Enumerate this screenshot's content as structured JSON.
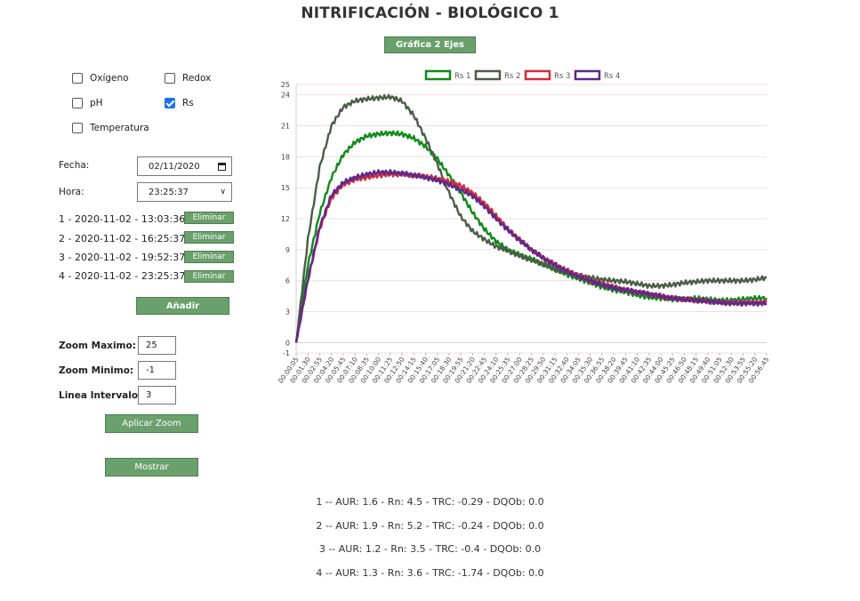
{
  "page": {
    "title": "NITRIFICACIÓN - BIOLÓGICO 1",
    "graph_button": "Gráfica 2 Ejes"
  },
  "checkboxes": [
    {
      "label": "Oxígeno",
      "checked": false
    },
    {
      "label": "Redox",
      "checked": false
    },
    {
      "label": "pH",
      "checked": false
    },
    {
      "label": "Rs",
      "checked": true
    },
    {
      "label": "Temperatura",
      "checked": false
    }
  ],
  "form": {
    "fecha_label": "Fecha:",
    "fecha_value": "02/11/2020",
    "hora_label": "Hora:",
    "hora_value": "23:25:37",
    "entries": [
      {
        "text": "1 - 2020-11-02 - 13:03:36",
        "button": "Eliminar"
      },
      {
        "text": "2 - 2020-11-02 - 16:25:37",
        "button": "Eliminar"
      },
      {
        "text": "3 - 2020-11-02 - 19:52:37",
        "button": "Eliminar"
      },
      {
        "text": "4 - 2020-11-02 - 23:25:37",
        "button": "Eliminar"
      }
    ],
    "add_button": "Añadir",
    "zoom_max_label": "Zoom Maximo:",
    "zoom_max_value": "25",
    "zoom_min_label": "Zoom Minimo:",
    "zoom_min_value": "-1",
    "interval_label": "Linea Intervalo:",
    "interval_value": "3",
    "apply_zoom_button": "Aplicar Zoom",
    "show_button": "Mostrar"
  },
  "stats": [
    "1 -- AUR: 1.6 - Rn: 4.5 - TRC: -0.29 - DQOb: 0.0",
    "2 -- AUR: 1.9 - Rn: 5.2 - TRC: -0.24 - DQOb: 0.0",
    "3 -- AUR: 1.2 - Rn: 3.5 - TRC: -0.4 - DQOb: 0.0",
    "4 -- AUR: 1.3 - Rn: 3.6 - TRC: -1.74 - DQOb: 0.0"
  ],
  "chart_data": {
    "type": "line",
    "title": "",
    "xlabel": "",
    "ylabel": "",
    "ylim": [
      -1,
      25
    ],
    "yticks": [
      -1,
      0,
      3,
      6,
      9,
      12,
      15,
      18,
      21,
      24,
      25
    ],
    "legend_position": "top",
    "x_categories": [
      "00:00:05",
      "00:01:30",
      "00:02:55",
      "00:04:20",
      "00:05:45",
      "00:07:10",
      "00:08:35",
      "00:10:00",
      "00:11:25",
      "00:12:50",
      "00:14:15",
      "00:15:40",
      "00:17:05",
      "00:18:30",
      "00:19:55",
      "00:21:20",
      "00:22:45",
      "00:24:10",
      "00:25:35",
      "00:27:00",
      "00:28:25",
      "00:29:50",
      "00:31:15",
      "00:32:40",
      "00:34:05",
      "00:35:30",
      "00:36:55",
      "00:38:20",
      "00:39:45",
      "00:41:10",
      "00:42:35",
      "00:44:00",
      "00:45:25",
      "00:46:50",
      "00:48:15",
      "00:49:40",
      "00:51:05",
      "00:52:30",
      "00:53:55",
      "00:55:20",
      "00:56:45"
    ],
    "series": [
      {
        "name": "Rs 1",
        "color": "#0f8a1a",
        "values": [
          0,
          7.5,
          12.5,
          16,
          18.2,
          19.4,
          20,
          20.2,
          20.3,
          20.2,
          19.8,
          19,
          17.8,
          16.2,
          14.5,
          12.6,
          11,
          9.8,
          9,
          8.5,
          8.1,
          7.6,
          7.1,
          6.6,
          6.2,
          5.8,
          5.4,
          5.1,
          4.9,
          4.6,
          4.4,
          4.3,
          4.2,
          4.2,
          4.3,
          4.2,
          4.1,
          4.1,
          4.2,
          4.3,
          4.3
        ]
      },
      {
        "name": "Rs 2",
        "color": "#4a5e46",
        "values": [
          0,
          10,
          17,
          21,
          22.8,
          23.4,
          23.6,
          23.7,
          23.8,
          23.4,
          22,
          19.8,
          17.3,
          14.5,
          12.2,
          10.8,
          10,
          9.3,
          8.9,
          8.4,
          8,
          7.6,
          7.1,
          6.8,
          6.5,
          6.3,
          6.1,
          6,
          5.9,
          5.7,
          5.5,
          5.5,
          5.6,
          5.8,
          5.9,
          6,
          6,
          6,
          6,
          6.1,
          6.3
        ]
      },
      {
        "name": "Rs 3",
        "color": "#d62a3a",
        "values": [
          0,
          6,
          11,
          14,
          15.3,
          15.8,
          16,
          16.2,
          16.3,
          16.3,
          16.2,
          16.1,
          15.9,
          15.6,
          15.2,
          14.5,
          13.5,
          12.3,
          11,
          10,
          9,
          8.2,
          7.6,
          7,
          6.5,
          6,
          5.7,
          5.4,
          5.1,
          4.9,
          4.7,
          4.5,
          4.3,
          4.2,
          4.1,
          4,
          3.9,
          3.9,
          3.9,
          3.9,
          3.9
        ]
      },
      {
        "name": "Rs 4",
        "color": "#5b2a8c",
        "values": [
          0,
          6.2,
          11.2,
          14.3,
          15.5,
          16,
          16.3,
          16.5,
          16.5,
          16.4,
          16.2,
          16,
          15.7,
          15.3,
          14.8,
          14.2,
          13.2,
          12,
          10.9,
          9.9,
          9,
          8.2,
          7.5,
          6.9,
          6.4,
          6,
          5.6,
          5.3,
          5.1,
          4.9,
          4.7,
          4.5,
          4.3,
          4.2,
          4.1,
          4,
          3.9,
          3.8,
          3.8,
          3.8,
          3.8
        ]
      }
    ]
  }
}
